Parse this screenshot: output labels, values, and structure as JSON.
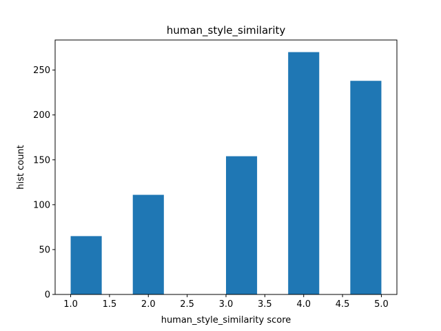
{
  "chart_data": {
    "type": "bar",
    "title": "human_style_similarity",
    "xlabel": "human_style_similarity score",
    "ylabel": "hist count",
    "bins": [
      {
        "x0": 1.0,
        "x1": 1.4,
        "count": 65
      },
      {
        "x0": 1.4,
        "x1": 1.8,
        "count": 0
      },
      {
        "x0": 1.8,
        "x1": 2.2,
        "count": 111
      },
      {
        "x0": 2.2,
        "x1": 2.6,
        "count": 0
      },
      {
        "x0": 2.6,
        "x1": 3.0,
        "count": 0
      },
      {
        "x0": 3.0,
        "x1": 3.4,
        "count": 154
      },
      {
        "x0": 3.4,
        "x1": 3.8,
        "count": 0
      },
      {
        "x0": 3.8,
        "x1": 4.2,
        "count": 270
      },
      {
        "x0": 4.2,
        "x1": 4.6,
        "count": 0
      },
      {
        "x0": 4.6,
        "x1": 5.0,
        "count": 238
      }
    ],
    "xlim": [
      0.8,
      5.2
    ],
    "ylim": [
      0,
      283.5
    ],
    "xticks": [
      "1.0",
      "1.5",
      "2.0",
      "2.5",
      "3.0",
      "3.5",
      "4.0",
      "4.5",
      "5.0"
    ],
    "yticks": [
      "0",
      "50",
      "100",
      "150",
      "200",
      "250"
    ],
    "bar_color": "#1f77b4",
    "grid": false,
    "legend": false
  }
}
